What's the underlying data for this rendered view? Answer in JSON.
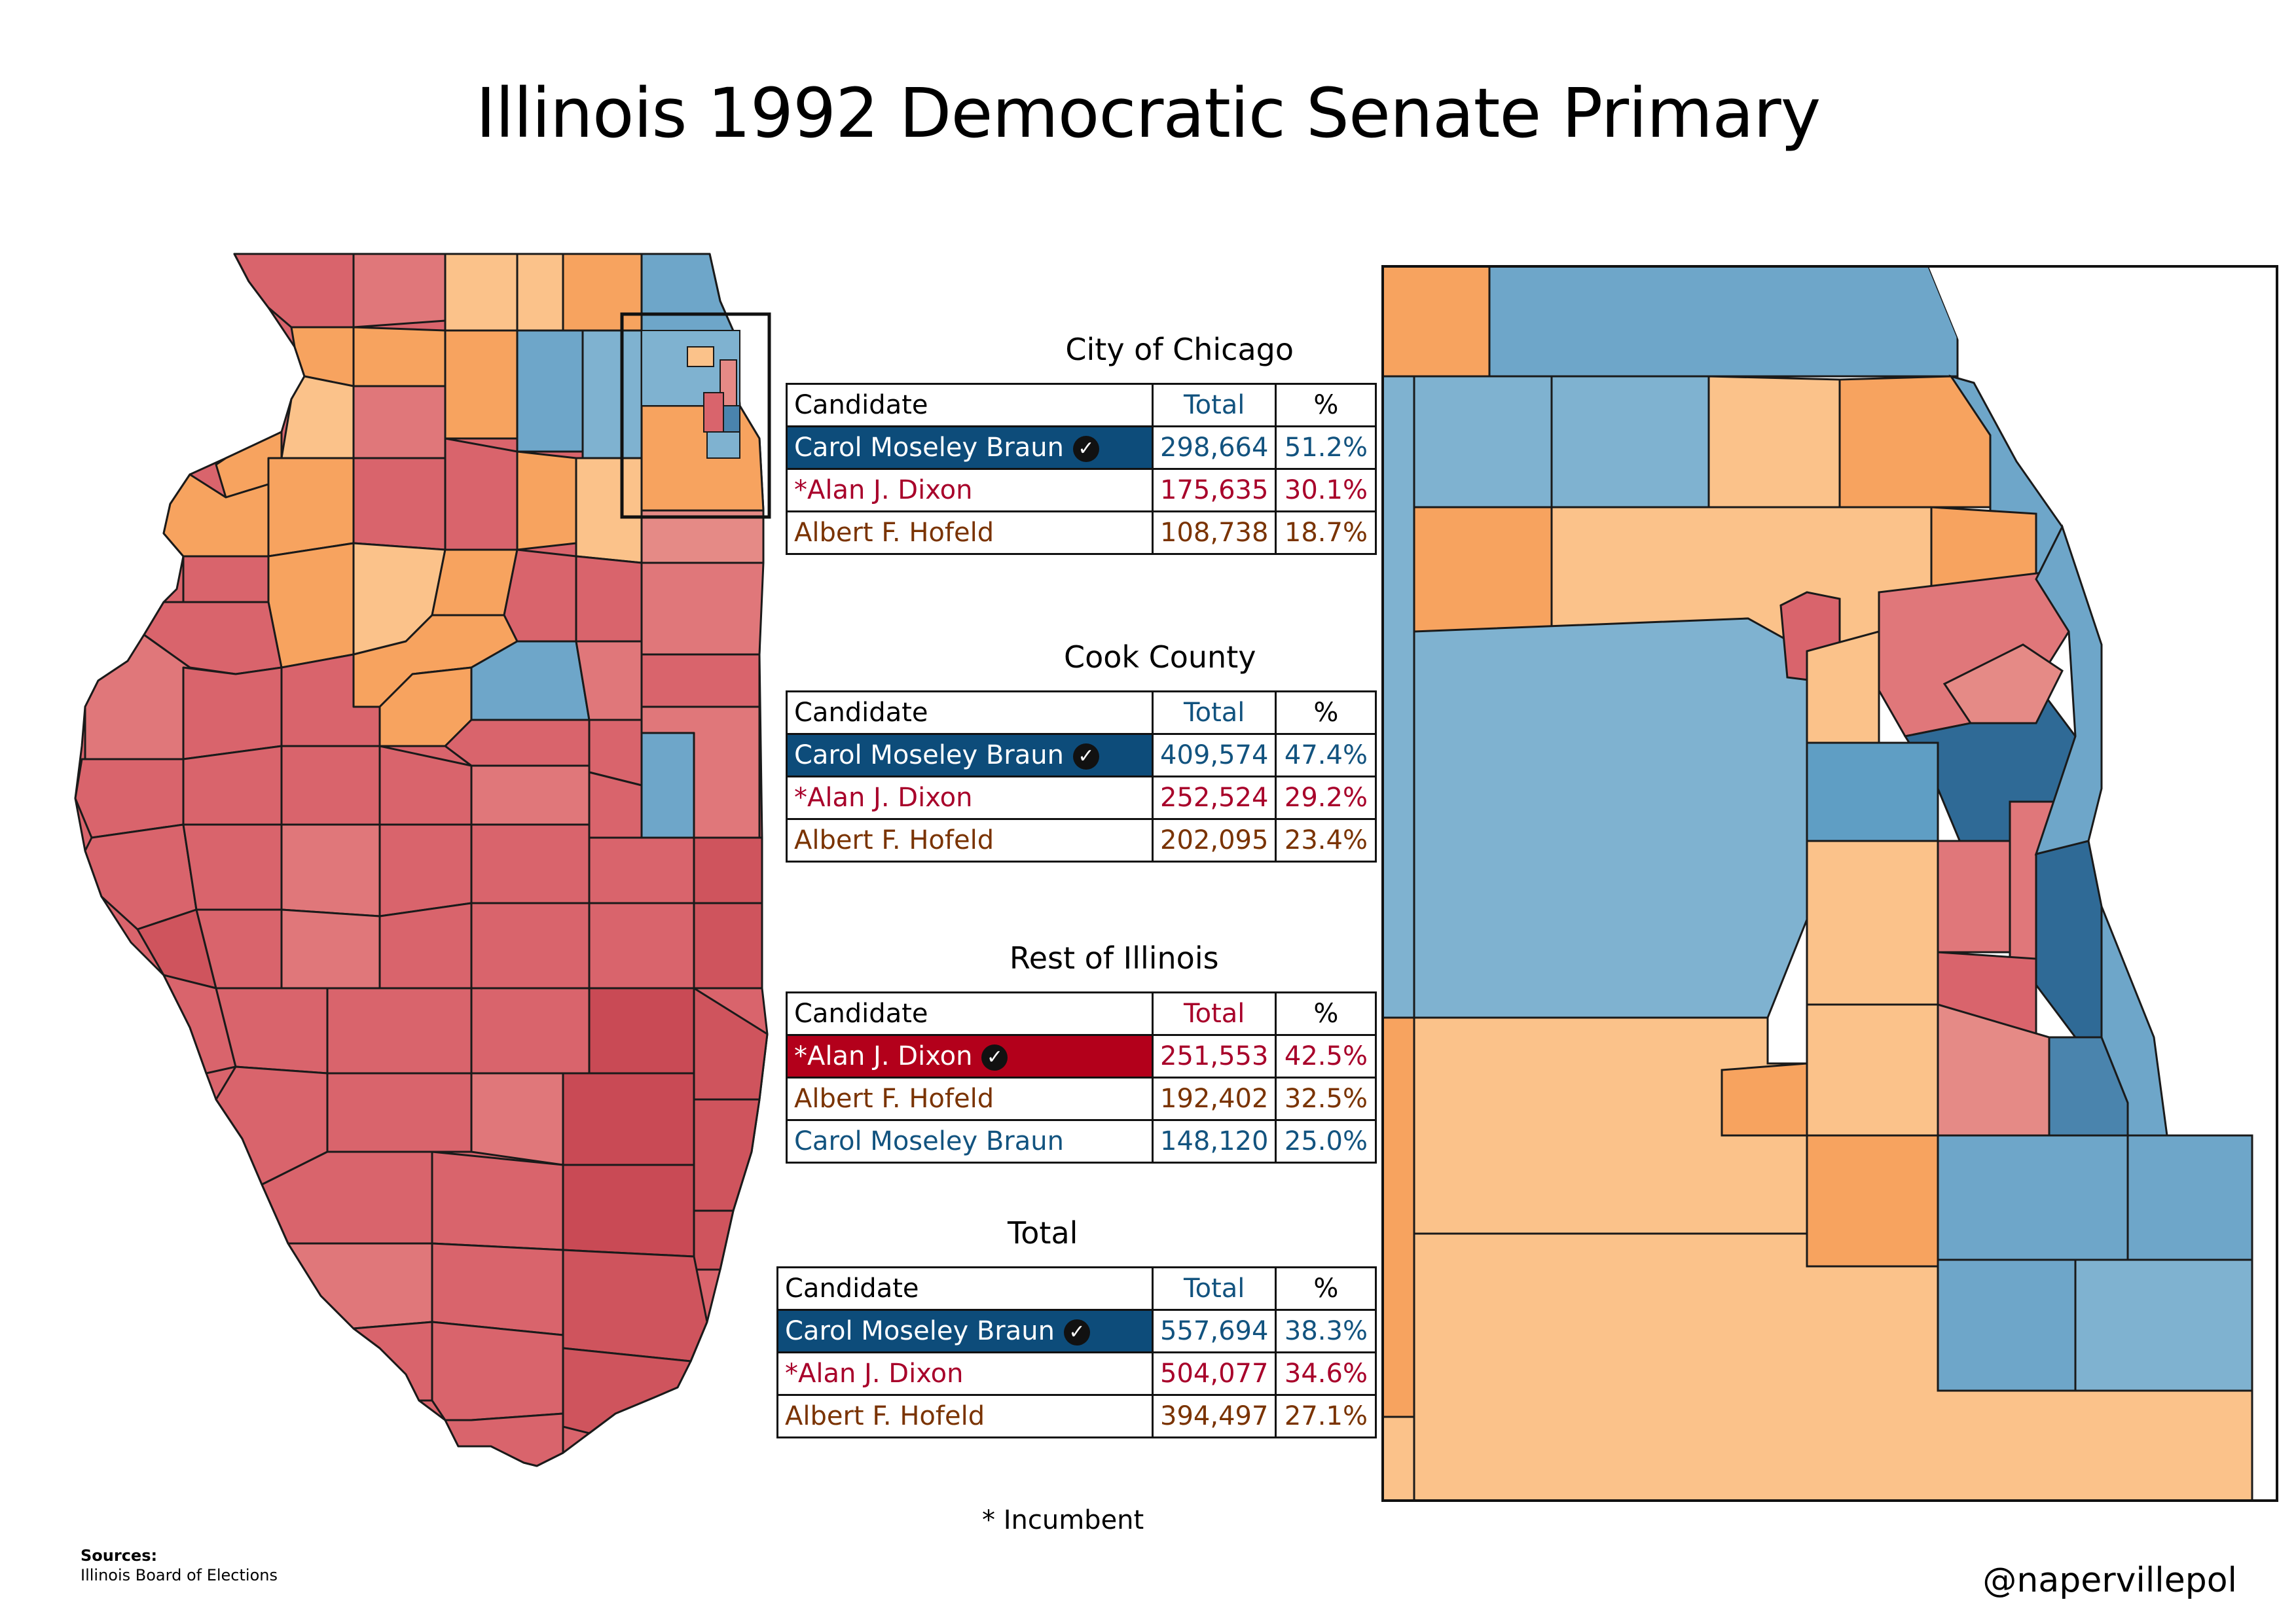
{
  "title": "Illinois 1992 Democratic Senate Primary",
  "colors": {
    "braun_dark": "#0d4c7a",
    "braun_mid": "#5f9ec4",
    "braun_light": "#7fb2d0",
    "dixon_dark": "#c94a55",
    "dixon_mid": "#d9646c",
    "dixon_light": "#e58a86",
    "hofeld_dark": "#f7a35f",
    "hofeld_light": "#fbc28a"
  },
  "tables": [
    {
      "title": "City of Chicago",
      "header": {
        "candidate": "Candidate",
        "total": "Total",
        "pct": "%"
      },
      "total_header_color": "blue",
      "rows": [
        {
          "candidate": "Carol Moseley Braun",
          "total": "298,664",
          "pct": "51.2%",
          "party": "blue",
          "winner": true
        },
        {
          "candidate": "*Alan J. Dixon",
          "total": "175,635",
          "pct": "30.1%",
          "party": "red",
          "winner": false
        },
        {
          "candidate": "Albert F. Hofeld",
          "total": "108,738",
          "pct": "18.7%",
          "party": "brown",
          "winner": false
        }
      ]
    },
    {
      "title": "Cook County",
      "header": {
        "candidate": "Candidate",
        "total": "Total",
        "pct": "%"
      },
      "total_header_color": "blue",
      "rows": [
        {
          "candidate": "Carol Moseley Braun",
          "total": "409,574",
          "pct": "47.4%",
          "party": "blue",
          "winner": true
        },
        {
          "candidate": "*Alan J. Dixon",
          "total": "252,524",
          "pct": "29.2%",
          "party": "red",
          "winner": false
        },
        {
          "candidate": "Albert F. Hofeld",
          "total": "202,095",
          "pct": "23.4%",
          "party": "brown",
          "winner": false
        }
      ]
    },
    {
      "title": "Rest of Illinois",
      "header": {
        "candidate": "Candidate",
        "total": "Total",
        "pct": "%"
      },
      "total_header_color": "red",
      "rows": [
        {
          "candidate": "*Alan J. Dixon",
          "total": "251,553",
          "pct": "42.5%",
          "party": "red",
          "winner": true
        },
        {
          "candidate": "Albert F. Hofeld",
          "total": "192,402",
          "pct": "32.5%",
          "party": "brown",
          "winner": false
        },
        {
          "candidate": "Carol Moseley Braun",
          "total": "148,120",
          "pct": "25.0%",
          "party": "blue",
          "winner": false
        }
      ]
    },
    {
      "title": "Total",
      "header": {
        "candidate": "Candidate",
        "total": "Total",
        "pct": "%"
      },
      "total_header_color": "blue",
      "rows": [
        {
          "candidate": "Carol Moseley Braun",
          "total": "557,694",
          "pct": "38.3%",
          "party": "blue",
          "winner": true
        },
        {
          "candidate": "*Alan J. Dixon",
          "total": "504,077",
          "pct": "34.6%",
          "party": "red",
          "winner": false
        },
        {
          "candidate": "Albert F. Hofeld",
          "total": "394,497",
          "pct": "27.1%",
          "party": "brown",
          "winner": false
        }
      ]
    }
  ],
  "footnote": "* Incumbent",
  "sources": {
    "label": "Sources:",
    "text": "Illinois Board of Elections"
  },
  "credit": "@napervillepol",
  "maps": {
    "state_map": "Illinois counties colored by winning candidate",
    "inset_map": "Cook County / Chicago detail"
  }
}
